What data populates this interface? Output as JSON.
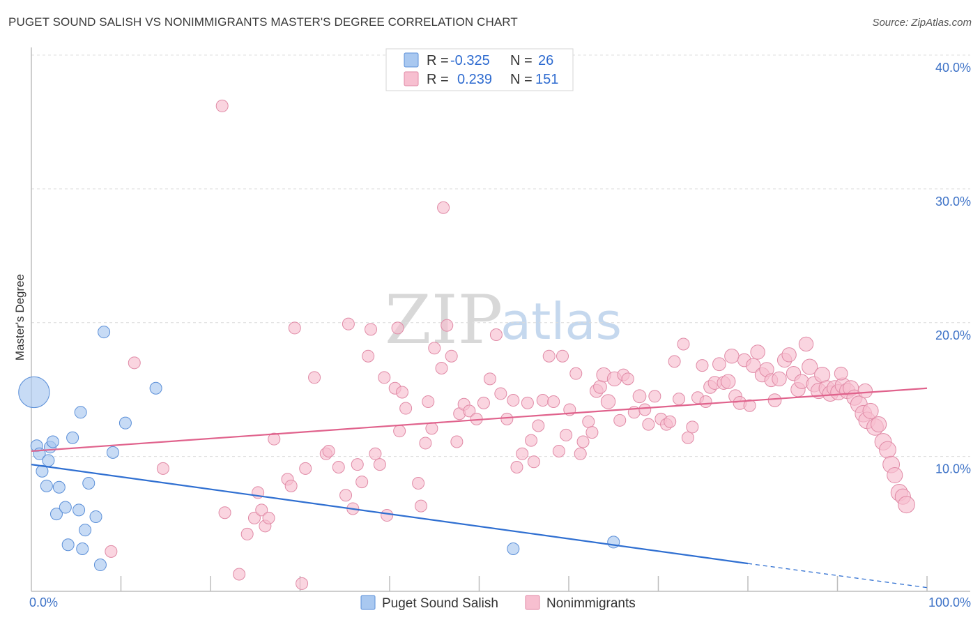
{
  "title": "PUGET SOUND SALISH VS NONIMMIGRANTS MASTER'S DEGREE CORRELATION CHART",
  "source": "Source: ZipAtlas.com",
  "watermark": {
    "zip": "ZIP",
    "atlas": "atlas"
  },
  "legend": {
    "rows": [
      {
        "r_label": "R =",
        "r_value": "-0.325",
        "n_label": "N =",
        "n_value": "26",
        "color": "#a9c8f0",
        "stroke": "#5b8fd8"
      },
      {
        "r_label": "R =",
        "r_value": "0.239",
        "n_label": "N =",
        "n_value": "151",
        "color": "#f7bfd0",
        "stroke": "#e08aa6"
      }
    ]
  },
  "bottom_legend": [
    {
      "label": "Puget Sound Salish",
      "color": "#a9c8f0",
      "stroke": "#5b8fd8"
    },
    {
      "label": "Nonimmigrants",
      "color": "#f7bfd0",
      "stroke": "#e08aa6"
    }
  ],
  "chart_data": {
    "type": "scatter",
    "title": "PUGET SOUND SALISH VS NONIMMIGRANTS MASTER'S DEGREE CORRELATION CHART",
    "xlabel": "",
    "ylabel": "Master's Degree",
    "xlim": [
      0,
      100
    ],
    "ylim": [
      0,
      42
    ],
    "x_tick_labels": [
      "0.0%",
      "100.0%"
    ],
    "y_ticks": [
      10,
      20,
      30,
      40
    ],
    "y_tick_labels": [
      "10.0%",
      "20.0%",
      "30.0%",
      "40.0%"
    ],
    "grid": "horizontal dashed",
    "legend_position": "top-center",
    "series": [
      {
        "name": "Puget Sound Salish",
        "color": "#a9c8f0",
        "stroke": "#5b8fd8",
        "trend": {
          "x": [
            0,
            80
          ],
          "y": [
            9.4,
            2.0
          ],
          "dashed_to": [
            100,
            0.2
          ],
          "color": "#2f6fd1"
        },
        "points": [
          [
            0.3,
            14.8,
            2.6
          ],
          [
            0.6,
            10.8,
            1
          ],
          [
            0.9,
            10.2,
            1
          ],
          [
            1.2,
            8.9,
            1
          ],
          [
            1.7,
            7.8,
            1
          ],
          [
            1.9,
            9.7,
            1
          ],
          [
            2.1,
            10.7,
            1
          ],
          [
            2.4,
            11.1,
            1
          ],
          [
            2.8,
            5.7,
            1
          ],
          [
            3.1,
            7.7,
            1
          ],
          [
            3.8,
            6.2,
            1
          ],
          [
            4.1,
            3.4,
            1
          ],
          [
            4.6,
            11.4,
            1
          ],
          [
            5.3,
            6.0,
            1
          ],
          [
            5.5,
            13.3,
            1
          ],
          [
            5.7,
            3.1,
            1
          ],
          [
            6.0,
            4.5,
            1
          ],
          [
            6.4,
            8.0,
            1
          ],
          [
            7.2,
            5.5,
            1
          ],
          [
            7.7,
            1.9,
            1
          ],
          [
            8.1,
            19.3,
            1
          ],
          [
            9.1,
            10.3,
            1
          ],
          [
            10.5,
            12.5,
            1
          ],
          [
            13.9,
            15.1,
            1
          ],
          [
            53.8,
            3.1,
            1
          ],
          [
            65.0,
            3.6,
            1
          ]
        ]
      },
      {
        "name": "Nonimmigrants",
        "color": "#f7bfd0",
        "stroke": "#e08aa6",
        "trend": {
          "x": [
            0,
            100
          ],
          "y": [
            10.4,
            15.1
          ],
          "color": "#e0628c"
        },
        "points": [
          [
            21.3,
            36.2,
            1
          ],
          [
            46.0,
            28.6,
            1
          ],
          [
            11.5,
            17.0,
            1
          ],
          [
            8.9,
            2.9,
            1
          ],
          [
            14.7,
            9.1,
            1
          ],
          [
            21.6,
            5.8,
            1
          ],
          [
            23.2,
            1.2,
            1
          ],
          [
            24.1,
            4.2,
            1
          ],
          [
            24.9,
            5.4,
            1
          ],
          [
            25.3,
            7.3,
            1
          ],
          [
            25.7,
            6.0,
            1
          ],
          [
            26.1,
            4.8,
            1
          ],
          [
            26.5,
            5.4,
            1
          ],
          [
            27.1,
            11.3,
            1
          ],
          [
            28.6,
            8.3,
            1
          ],
          [
            29.0,
            7.8,
            1
          ],
          [
            29.4,
            19.6,
            1
          ],
          [
            30.2,
            0.5,
            1
          ],
          [
            30.6,
            9.1,
            1
          ],
          [
            31.6,
            15.9,
            1
          ],
          [
            32.9,
            10.2,
            1
          ],
          [
            33.2,
            10.4,
            1
          ],
          [
            34.3,
            9.2,
            1
          ],
          [
            35.1,
            7.1,
            1
          ],
          [
            35.4,
            19.9,
            1
          ],
          [
            35.9,
            6.1,
            1
          ],
          [
            36.4,
            9.4,
            1
          ],
          [
            36.9,
            8.1,
            1
          ],
          [
            37.6,
            17.5,
            1
          ],
          [
            37.9,
            19.5,
            1
          ],
          [
            38.4,
            10.2,
            1
          ],
          [
            38.9,
            9.4,
            1
          ],
          [
            39.4,
            15.9,
            1
          ],
          [
            39.7,
            5.6,
            1
          ],
          [
            40.6,
            15.1,
            1
          ],
          [
            40.9,
            19.6,
            1
          ],
          [
            41.1,
            11.9,
            1
          ],
          [
            41.4,
            14.8,
            1
          ],
          [
            41.8,
            13.6,
            1
          ],
          [
            43.2,
            8.0,
            1
          ],
          [
            43.5,
            6.3,
            1
          ],
          [
            44.0,
            11.0,
            1
          ],
          [
            44.3,
            14.1,
            1
          ],
          [
            44.7,
            12.1,
            1
          ],
          [
            45.0,
            18.1,
            1
          ],
          [
            45.8,
            16.6,
            1
          ],
          [
            46.4,
            19.8,
            1
          ],
          [
            46.9,
            17.5,
            1
          ],
          [
            47.5,
            11.1,
            1
          ],
          [
            47.8,
            13.2,
            1
          ],
          [
            48.3,
            13.9,
            1
          ],
          [
            48.9,
            13.4,
            1
          ],
          [
            49.7,
            12.8,
            1
          ],
          [
            50.5,
            14.0,
            1
          ],
          [
            51.2,
            15.8,
            1
          ],
          [
            51.9,
            19.1,
            1
          ],
          [
            52.4,
            14.7,
            1
          ],
          [
            53.1,
            12.8,
            1
          ],
          [
            53.8,
            14.2,
            1
          ],
          [
            54.2,
            9.2,
            1
          ],
          [
            54.8,
            10.2,
            1
          ],
          [
            55.4,
            14.0,
            1
          ],
          [
            55.8,
            11.2,
            1
          ],
          [
            56.1,
            9.6,
            1
          ],
          [
            56.6,
            12.3,
            1
          ],
          [
            57.1,
            14.2,
            1
          ],
          [
            57.8,
            17.5,
            1
          ],
          [
            58.3,
            14.1,
            1
          ],
          [
            58.9,
            10.4,
            1
          ],
          [
            59.3,
            17.5,
            1
          ],
          [
            59.7,
            11.6,
            1
          ],
          [
            60.1,
            13.5,
            1
          ],
          [
            60.8,
            16.2,
            1
          ],
          [
            61.3,
            10.2,
            1
          ],
          [
            61.6,
            11.1,
            1
          ],
          [
            62.2,
            12.6,
            1
          ],
          [
            62.6,
            11.8,
            1
          ],
          [
            63.1,
            14.9,
            1.1
          ],
          [
            63.5,
            15.2,
            1.1
          ],
          [
            63.9,
            16.1,
            1.2
          ],
          [
            64.4,
            14.1,
            1.2
          ],
          [
            65.1,
            15.8,
            1.2
          ],
          [
            65.7,
            12.7,
            1
          ],
          [
            66.1,
            16.1,
            1
          ],
          [
            66.6,
            15.8,
            1
          ],
          [
            67.3,
            13.3,
            1
          ],
          [
            67.9,
            14.5,
            1.1
          ],
          [
            68.5,
            13.5,
            1
          ],
          [
            68.9,
            12.4,
            1
          ],
          [
            69.6,
            14.5,
            1
          ],
          [
            70.3,
            12.8,
            1
          ],
          [
            70.9,
            12.4,
            1
          ],
          [
            71.3,
            12.6,
            1
          ],
          [
            71.8,
            17.1,
            1
          ],
          [
            72.3,
            14.3,
            1
          ],
          [
            72.8,
            18.4,
            1
          ],
          [
            73.3,
            11.4,
            1
          ],
          [
            73.8,
            12.2,
            1
          ],
          [
            74.4,
            14.4,
            1
          ],
          [
            74.9,
            16.8,
            1
          ],
          [
            75.3,
            14.1,
            1
          ],
          [
            75.8,
            15.2,
            1.1
          ],
          [
            76.3,
            15.5,
            1.1
          ],
          [
            76.8,
            16.9,
            1.1
          ],
          [
            77.3,
            15.5,
            1.1
          ],
          [
            77.8,
            15.6,
            1.2
          ],
          [
            78.2,
            17.5,
            1.2
          ],
          [
            78.6,
            14.5,
            1.1
          ],
          [
            79.1,
            14.0,
            1.1
          ],
          [
            79.6,
            17.2,
            1.1
          ],
          [
            80.2,
            13.8,
            1
          ],
          [
            80.6,
            16.8,
            1.2
          ],
          [
            81.1,
            17.8,
            1.2
          ],
          [
            81.6,
            16.1,
            1.2
          ],
          [
            82.1,
            16.5,
            1.2
          ],
          [
            82.6,
            15.7,
            1.1
          ],
          [
            83.0,
            14.2,
            1.1
          ],
          [
            83.5,
            15.8,
            1.2
          ],
          [
            84.1,
            17.2,
            1.2
          ],
          [
            84.6,
            17.6,
            1.2
          ],
          [
            85.1,
            16.2,
            1.2
          ],
          [
            85.6,
            15.0,
            1.2
          ],
          [
            86.0,
            15.6,
            1.2
          ],
          [
            86.5,
            18.4,
            1.2
          ],
          [
            86.9,
            16.7,
            1.3
          ],
          [
            87.4,
            15.4,
            1.3
          ],
          [
            87.9,
            14.9,
            1.3
          ],
          [
            88.3,
            16.1,
            1.3
          ],
          [
            88.8,
            15.1,
            1.3
          ],
          [
            89.2,
            14.7,
            1.3
          ],
          [
            89.7,
            15.1,
            1.3
          ],
          [
            90.1,
            14.8,
            1.3
          ],
          [
            90.6,
            15.3,
            1.3
          ],
          [
            91.1,
            14.9,
            1.3
          ],
          [
            91.5,
            15.1,
            1.3
          ],
          [
            91.9,
            14.4,
            1.3
          ],
          [
            92.4,
            13.9,
            1.4
          ],
          [
            92.9,
            13.2,
            1.4
          ],
          [
            93.3,
            12.7,
            1.4
          ],
          [
            93.7,
            13.4,
            1.3
          ],
          [
            94.2,
            12.2,
            1.4
          ],
          [
            94.6,
            12.4,
            1.3
          ],
          [
            95.1,
            11.1,
            1.4
          ],
          [
            95.6,
            10.5,
            1.4
          ],
          [
            96.0,
            9.4,
            1.4
          ],
          [
            96.4,
            8.6,
            1.3
          ],
          [
            96.9,
            7.3,
            1.4
          ],
          [
            97.3,
            7.0,
            1.3
          ],
          [
            97.7,
            6.4,
            1.4
          ],
          [
            93.1,
            14.9,
            1.2
          ],
          [
            90.4,
            16.2,
            1.1
          ]
        ]
      }
    ]
  }
}
